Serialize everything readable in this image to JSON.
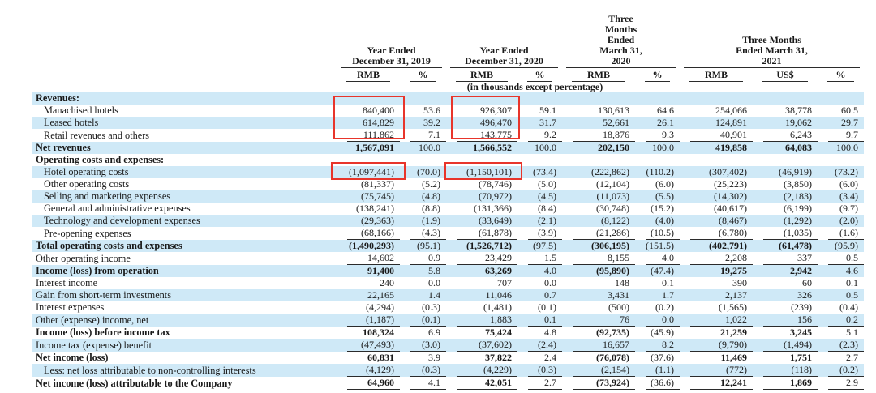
{
  "colors": {
    "stripe_blue": "#cfe9f7",
    "highlight_red": "#e8352b",
    "rule": "#2b2b2b",
    "text": "#1a1a1a"
  },
  "table": {
    "note": "(in thousands except percentage)",
    "column_groups": [
      {
        "title": "Year Ended\nDecember 31, 2019",
        "columns": [
          "RMB",
          "%"
        ]
      },
      {
        "title": "Year Ended\nDecember 31, 2020",
        "columns": [
          "RMB",
          "%"
        ]
      },
      {
        "title": "Three\nMonths\nEnded\nMarch 31,\n2020",
        "columns": [
          "RMB",
          "%"
        ]
      },
      {
        "title": "Three Months\nEnded March 31,\n2021",
        "columns": [
          "RMB",
          "US$",
          "%"
        ]
      }
    ],
    "rows": [
      {
        "label": "Revenues:",
        "section": true,
        "bold": true,
        "indent": false,
        "underline": false,
        "values": [
          "",
          "",
          "",
          "",
          "",
          "",
          "",
          "",
          ""
        ]
      },
      {
        "label": "Manachised hotels",
        "section": false,
        "bold": false,
        "indent": true,
        "underline": false,
        "values": [
          "840,400",
          "53.6",
          "926,307",
          "59.1",
          "130,613",
          "64.6",
          "254,066",
          "38,778",
          "60.5"
        ]
      },
      {
        "label": "Leased hotels",
        "section": false,
        "bold": false,
        "indent": true,
        "underline": false,
        "values": [
          "614,829",
          "39.2",
          "496,470",
          "31.7",
          "52,661",
          "26.1",
          "124,891",
          "19,062",
          "29.7"
        ]
      },
      {
        "label": "Retail revenues and others",
        "section": false,
        "bold": false,
        "indent": true,
        "underline": true,
        "values": [
          "111,862",
          "7.1",
          "143,775",
          "9.2",
          "18,876",
          "9.3",
          "40,901",
          "6,243",
          "9.7"
        ]
      },
      {
        "label": "Net revenues",
        "section": false,
        "bold": true,
        "indent": false,
        "underline": false,
        "values": [
          "1,567,091",
          "100.0",
          "1,566,552",
          "100.0",
          "202,150",
          "100.0",
          "419,858",
          "64,083",
          "100.0"
        ]
      },
      {
        "label": "Operating costs and expenses:",
        "section": true,
        "bold": true,
        "indent": false,
        "underline": false,
        "values": [
          "",
          "",
          "",
          "",
          "",
          "",
          "",
          "",
          ""
        ]
      },
      {
        "label": "Hotel operating costs",
        "section": false,
        "bold": false,
        "indent": true,
        "underline": false,
        "values": [
          "(1,097,441)",
          "(70.0)",
          "(1,150,101)",
          "(73.4)",
          "(222,862)",
          "(110.2)",
          "(307,402)",
          "(46,919)",
          "(73.2)"
        ]
      },
      {
        "label": "Other operating costs",
        "section": false,
        "bold": false,
        "indent": true,
        "underline": false,
        "values": [
          "(81,337)",
          "(5.2)",
          "(78,746)",
          "(5.0)",
          "(12,104)",
          "(6.0)",
          "(25,223)",
          "(3,850)",
          "(6.0)"
        ]
      },
      {
        "label": "Selling and marketing expenses",
        "section": false,
        "bold": false,
        "indent": true,
        "underline": false,
        "values": [
          "(75,745)",
          "(4.8)",
          "(70,972)",
          "(4.5)",
          "(11,073)",
          "(5.5)",
          "(14,302)",
          "(2,183)",
          "(3.4)"
        ]
      },
      {
        "label": "General and administrative expenses",
        "section": false,
        "bold": false,
        "indent": true,
        "underline": false,
        "values": [
          "(138,241)",
          "(8.8)",
          "(131,366)",
          "(8.4)",
          "(30,748)",
          "(15.2)",
          "(40,617)",
          "(6,199)",
          "(9.7)"
        ]
      },
      {
        "label": "Technology and development expenses",
        "section": false,
        "bold": false,
        "indent": true,
        "underline": false,
        "values": [
          "(29,363)",
          "(1.9)",
          "(33,649)",
          "(2.1)",
          "(8,122)",
          "(4.0)",
          "(8,467)",
          "(1,292)",
          "(2.0)"
        ]
      },
      {
        "label": "Pre-opening expenses",
        "section": false,
        "bold": false,
        "indent": true,
        "underline": true,
        "values": [
          "(68,166)",
          "(4.3)",
          "(61,878)",
          "(3.9)",
          "(21,286)",
          "(10.5)",
          "(6,780)",
          "(1,035)",
          "(1.6)"
        ]
      },
      {
        "label": "Total operating costs and expenses",
        "section": false,
        "bold": true,
        "indent": false,
        "underline": false,
        "values": [
          "(1,490,293)",
          "(95.1)",
          "(1,526,712)",
          "(97.5)",
          "(306,195)",
          "(151.5)",
          "(402,791)",
          "(61,478)",
          "(95.9)"
        ]
      },
      {
        "label": "Other operating income",
        "section": false,
        "bold": false,
        "indent": false,
        "underline": true,
        "values": [
          "14,602",
          "0.9",
          "23,429",
          "1.5",
          "8,155",
          "4.0",
          "2,208",
          "337",
          "0.5"
        ]
      },
      {
        "label": "Income (loss) from operation",
        "section": false,
        "bold": true,
        "indent": false,
        "underline": false,
        "values": [
          "91,400",
          "5.8",
          "63,269",
          "4.0",
          "(95,890)",
          "(47.4)",
          "19,275",
          "2,942",
          "4.6"
        ]
      },
      {
        "label": "Interest income",
        "section": false,
        "bold": false,
        "indent": false,
        "underline": false,
        "values": [
          "240",
          "0.0",
          "707",
          "0.0",
          "148",
          "0.1",
          "390",
          "60",
          "0.1"
        ]
      },
      {
        "label": "Gain from short-term investments",
        "section": false,
        "bold": false,
        "indent": false,
        "underline": false,
        "values": [
          "22,165",
          "1.4",
          "11,046",
          "0.7",
          "3,431",
          "1.7",
          "2,137",
          "326",
          "0.5"
        ]
      },
      {
        "label": "Interest expenses",
        "section": false,
        "bold": false,
        "indent": false,
        "underline": false,
        "values": [
          "(4,294)",
          "(0.3)",
          "(1,481)",
          "(0.1)",
          "(500)",
          "(0.2)",
          "(1,565)",
          "(239)",
          "(0.4)"
        ]
      },
      {
        "label": "Other (expense) income, net",
        "section": false,
        "bold": false,
        "indent": false,
        "underline": true,
        "values": [
          "(1,187)",
          "(0.1)",
          "1,883",
          "0.1",
          "76",
          "0.0",
          "1,022",
          "156",
          "0.2"
        ]
      },
      {
        "label": "Income (loss) before income tax",
        "section": false,
        "bold": true,
        "indent": false,
        "underline": false,
        "values": [
          "108,324",
          "6.9",
          "75,424",
          "4.8",
          "(92,735)",
          "(45.9)",
          "21,259",
          "3,245",
          "5.1"
        ]
      },
      {
        "label": "Income tax (expense) benefit",
        "section": false,
        "bold": false,
        "indent": false,
        "underline": true,
        "values": [
          "(47,493)",
          "(3.0)",
          "(37,602)",
          "(2.4)",
          "16,657",
          "8.2",
          "(9,790)",
          "(1,494)",
          "(2.3)"
        ]
      },
      {
        "label": "Net income (loss)",
        "section": false,
        "bold": true,
        "indent": false,
        "underline": false,
        "values": [
          "60,831",
          "3.9",
          "37,822",
          "2.4",
          "(76,078)",
          "(37.6)",
          "11,469",
          "1,751",
          "2.7"
        ]
      },
      {
        "label": "Less: net loss attributable to non-controlling interests",
        "section": false,
        "bold": false,
        "indent": true,
        "underline": true,
        "values": [
          "(4,129)",
          "(0.3)",
          "(4,229)",
          "(0.3)",
          "(2,154)",
          "(1.1)",
          "(772)",
          "(118)",
          "(0.2)"
        ]
      },
      {
        "label": "Net income (loss) attributable to the Company",
        "section": false,
        "bold": true,
        "indent": false,
        "underline": true,
        "values": [
          "64,960",
          "4.1",
          "42,051",
          "2.7",
          "(73,924)",
          "(36.6)",
          "12,241",
          "1,869",
          "2.9"
        ]
      }
    ],
    "highlights": [
      {
        "note": "red box around Manachised + Leased hotels values, Year 2019 RMB column"
      },
      {
        "note": "red box around Manachised + Leased hotels values, Year 2020 RMB column"
      },
      {
        "note": "red box around Hotel operating costs value, Year 2019 RMB column"
      },
      {
        "note": "red box around Hotel operating costs value, Year 2020 RMB column"
      }
    ]
  }
}
